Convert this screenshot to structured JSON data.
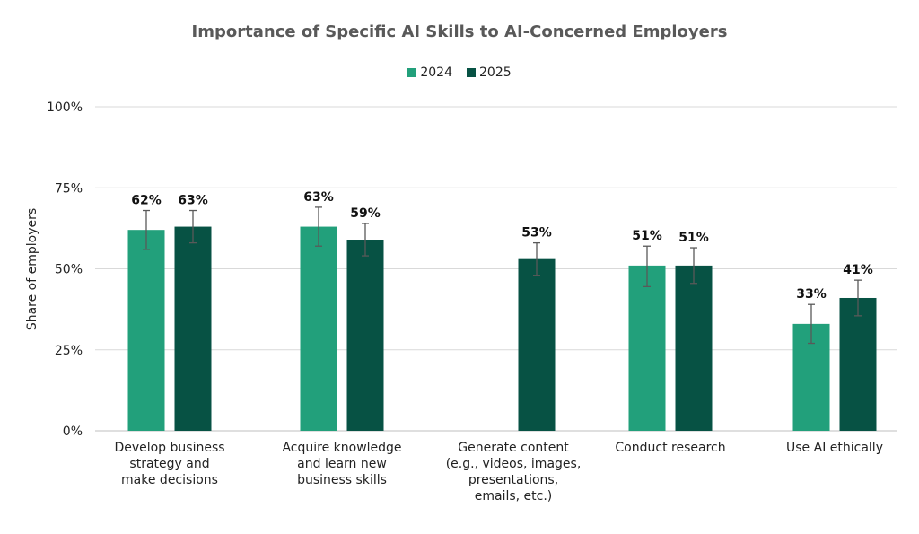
{
  "chart_data": {
    "type": "bar",
    "title": "Importance of Specific AI Skills to AI-Concerned Employers",
    "xlabel": "",
    "ylabel": "Share of employers",
    "ylim": [
      0,
      100
    ],
    "yticks": [
      "0%",
      "25%",
      "50%",
      "75%",
      "100%"
    ],
    "yticks_values": [
      0,
      25,
      50,
      75,
      100
    ],
    "grid": true,
    "legend_position": "top",
    "categories": [
      [
        "Develop business",
        "strategy and",
        "make decisions"
      ],
      [
        "Acquire knowledge",
        "and learn new",
        "business skills"
      ],
      [
        "Generate content",
        "(e.g., videos, images,",
        "presentations,",
        "emails, etc.)"
      ],
      [
        "Conduct research"
      ],
      [
        "Use AI ethically"
      ]
    ],
    "series": [
      {
        "name": "2024",
        "color": "#22a07b",
        "values": [
          62,
          63,
          null,
          51,
          33
        ],
        "labels": [
          "62%",
          "63%",
          "",
          "51%",
          "33%"
        ],
        "error_low": [
          56,
          57,
          null,
          44.5,
          27
        ],
        "error_high": [
          68,
          69,
          null,
          57,
          39
        ]
      },
      {
        "name": "2025",
        "color": "#075244",
        "values": [
          63,
          59,
          53,
          51,
          41
        ],
        "labels": [
          "63%",
          "59%",
          "53%",
          "51%",
          "41%"
        ],
        "error_low": [
          58,
          54,
          48,
          45.5,
          35.5
        ],
        "error_high": [
          68,
          64,
          58,
          56.5,
          46.5
        ]
      }
    ]
  }
}
